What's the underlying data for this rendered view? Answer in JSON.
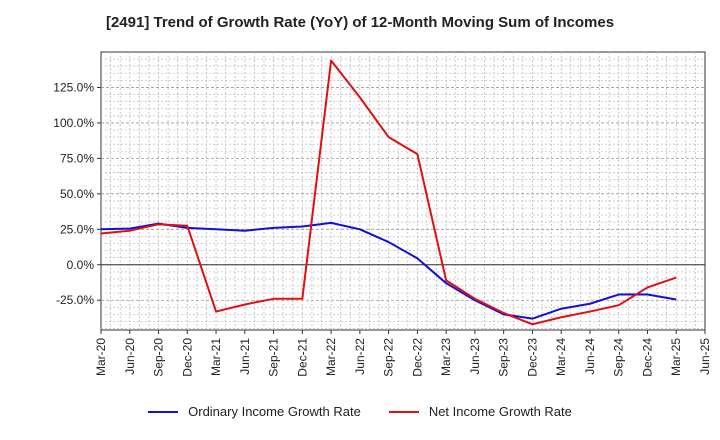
{
  "chart_data": {
    "type": "line",
    "title": "[2491]  Trend of Growth Rate (YoY) of 12-Month Moving Sum of Incomes",
    "x": [
      "Mar-20",
      "Jun-20",
      "Sep-20",
      "Dec-20",
      "Mar-21",
      "Jun-21",
      "Sep-21",
      "Dec-21",
      "Mar-22",
      "Jun-22",
      "Sep-22",
      "Dec-22",
      "Mar-23",
      "Jun-23",
      "Sep-23",
      "Dec-23",
      "Mar-24",
      "Jun-24",
      "Sep-24",
      "Dec-24",
      "Mar-25",
      "Jun-25"
    ],
    "x_tick_labels": [
      "Mar-20",
      "Jun-20",
      "Sep-20",
      "Dec-20",
      "Mar-21",
      "Jun-21",
      "Sep-21",
      "Dec-21",
      "Mar-22",
      "Jun-22",
      "Sep-22",
      "Dec-22",
      "Mar-23",
      "Jun-23",
      "Sep-23",
      "Dec-23",
      "Mar-24",
      "Jun-24",
      "Sep-24",
      "Dec-24",
      "Mar-25",
      "Jun-25"
    ],
    "y_ticks": [
      -25,
      0,
      25,
      50,
      75,
      100,
      125
    ],
    "y_tick_labels": [
      "-25.0%",
      "0.0%",
      "25.0%",
      "50.0%",
      "75.0%",
      "100.0%",
      "125.0%"
    ],
    "ylim": [
      -46,
      150
    ],
    "grid": true,
    "legend_position": "bottom",
    "series": [
      {
        "name": "Ordinary Income Growth Rate",
        "color": "#1010d8",
        "values": [
          25,
          25.5,
          29,
          26,
          25,
          24,
          26,
          27,
          29.5,
          25,
          16,
          4.5,
          -13,
          -25,
          -35,
          -38,
          -31,
          -27.5,
          -21,
          -21,
          -24.5,
          null
        ]
      },
      {
        "name": "Net Income Growth Rate",
        "color": "#e01010",
        "values": [
          22,
          24,
          28.5,
          27.5,
          -33,
          -28,
          -24,
          -24,
          144,
          118,
          90,
          78,
          -11,
          -24,
          -34,
          -42,
          -37,
          -33,
          -28.5,
          -16,
          -9,
          null
        ]
      }
    ]
  }
}
